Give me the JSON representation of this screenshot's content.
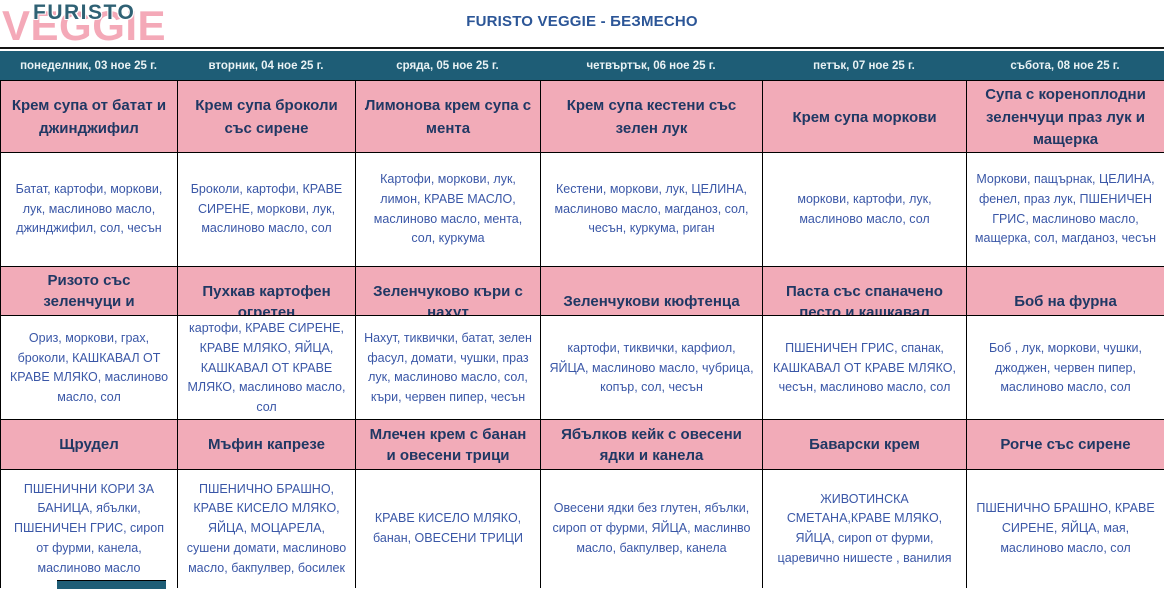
{
  "logo": {
    "line1": "FURISTO",
    "line2": "VEGGIE"
  },
  "title": "FURISTO VEGGIE - БЕЗМЕСНО",
  "colors": {
    "teal_band": "#1e5d76",
    "pink_cell": "#f2abb8",
    "dish_text": "#203864",
    "ingredient_text": "#3a57a7",
    "title_text": "#2c5697",
    "logo_pink": "#f4a9b8",
    "logo_teal": "#2f6174"
  },
  "days": [
    "понеделник, 03 ное 25 г.",
    "вторник, 04 ное 25 г.",
    "сряда, 05 ное 25 г.",
    "четвъртък, 06 ное 25 г.",
    "петък, 07 ное 25 г.",
    "събота, 08 ное 25 г."
  ],
  "courses": [
    {
      "dishes": [
        "Крем супа от батат и джинджифил",
        "Крем супа броколи със сирене",
        "Лимонова крем супа с мента",
        "Крем супа кестени със зелен лук",
        "Крем супа моркови",
        "Супа с кореноплодни зеленчуци праз лук и мащерка"
      ],
      "ingredients": [
        "Батат, картофи, моркови, лук, маслиново масло, джинджифил, сол, чесън",
        "Броколи, картофи, КРАВЕ СИРЕНЕ, моркови, лук, маслиново масло, сол",
        "Картофи, моркови, лук, лимон, КРАВЕ МАСЛО, маслиново масло, мента, сол, куркума",
        "Кестени, моркови, лук, ЦЕЛИНА, маслиново масло, магданоз, сол, чесън, куркума, риган",
        "моркови, картофи, лук, маслиново масло, сол",
        "Моркови, пащърнак, ЦЕЛИНА, фенел, праз лук, ПШЕНИЧЕН ГРИС, маслиново масло, мащерка, сол, магданоз, чесън"
      ]
    },
    {
      "dishes": [
        "Ризото със зеленчуци и кашкавал",
        "Пухкав картофен огретен",
        "Зеленчуково къри с нахут",
        "Зеленчукови кюфтенца",
        "Паста  със спаначено песто и кашкавал",
        "Боб на фурна"
      ],
      "ingredients": [
        "Ориз, моркови, грах, броколи, КАШКАВАЛ ОТ КРАВЕ МЛЯКО, маслиново масло, сол",
        "картофи, КРАВЕ СИРЕНЕ, КРАВЕ МЛЯКО, ЯЙЦА, КАШКАВАЛ ОТ КРАВЕ МЛЯКО,  маслиново масло, сол",
        "Нахут, тиквички, батат, зелен фасул, домати, чушки, праз лук, маслиново масло, сол, къри, червен пипер, чесън",
        "картофи, тиквички, карфиол, ЯЙЦА,  маслиново масло, чубрица, копър, сол, чесън",
        "ПШЕНИЧЕН ГРИС,  спанак, КАШКАВАЛ ОТ КРАВЕ МЛЯКО, чесън,  маслиново масло, сол",
        "Боб , лук, моркови, чушки, джоджен, червен пипер, маслиново масло, сол"
      ]
    },
    {
      "dishes": [
        "Щрудел",
        "Мъфин капрезе",
        "Млечен крем  с банан и овесени трици",
        "Ябълков кейк с овесени ядки и канела",
        "Баварски крем",
        "Рогче със сирене"
      ],
      "ingredients": [
        "ПШЕНИЧНИ КОРИ ЗА БАНИЦА, ябълки, ПШЕНИЧЕН ГРИС, сироп от фурми,  канела, маслиново масло",
        "ПШЕНИЧНО БРАШНО, КРАВЕ КИСЕЛО МЛЯКО, ЯЙЦА,  МОЦАРЕЛА, сушени домати, маслиново масло, бакпулвер, босилек",
        "КРАВЕ КИСЕЛО МЛЯКО, банан, ОВЕСЕНИ ТРИЦИ",
        "Овесени ядки без глутен, ябълки, сироп от фурми, ЯЙЦА, маслинво масло, бакпулвер, канела",
        "ЖИВОТИНСКА СМЕТАНА,КРАВЕ МЛЯКО, ЯЙЦА, сироп от фурми, царевично нишесте , ванилия",
        "ПШЕНИЧНО БРАШНО, КРАВЕ СИРЕНЕ, ЯЙЦА, мая, маслиново масло, сол"
      ]
    }
  ]
}
